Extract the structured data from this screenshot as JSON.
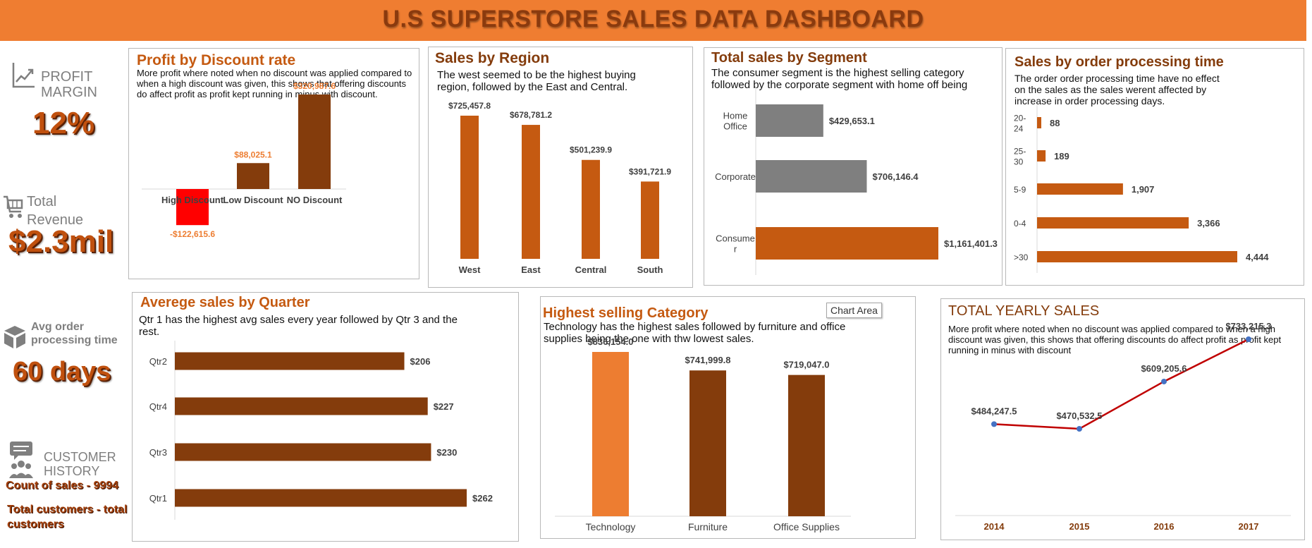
{
  "dashboard_title": "U.S SUPERSTORE SALES DATA DASHBOARD",
  "colors": {
    "banner": "#ef7d31",
    "dark_brown": "#843c0c",
    "orange": "#c55a11",
    "light_orange": "#ed7d31",
    "gray": "#7f7f7f",
    "red": "#ff0000",
    "line_red": "#c00000",
    "point_blue": "#4472c4"
  },
  "kpis": {
    "profit_margin": {
      "label": "PROFIT MARGIN",
      "value": "12%",
      "icon": "trend-chart-icon"
    },
    "total_revenue": {
      "label_line1": "Total",
      "label_line2": "Revenue",
      "value": "$2.3mil",
      "icon": "shopping-cart-icon"
    },
    "avg_processing": {
      "label_line1": "Avg order",
      "label_line2": "processing time",
      "value": "60 days",
      "icon": "box-icon"
    },
    "customer_history": {
      "label_line1": "CUSTOMER",
      "label_line2": "HISTORY",
      "count_text": "Count of sales  -  9994",
      "customers_line1": "Total customers - total",
      "customers_line2": "customers",
      "icon": "customers-icon"
    }
  },
  "panels": {
    "discount": {
      "title": "Profit by Discount rate",
      "description": "More profit where noted when no discount was applied compared to when a high discount was given, this shows that offering discounts do affect profit as profit kept running in minus with discount."
    },
    "region": {
      "title": "Sales by Region",
      "description": "The west seemed to be the highest buying region, followed by the East and Central."
    },
    "segment": {
      "title": "Total sales by Segment",
      "description": "The consumer segment is the highest selling category followed by the corporate segment with home off being"
    },
    "processing": {
      "title": "Sales by order processing time",
      "description": "The order order processing time have no effect on the sales as the sales werent affected by increase in order processing days."
    },
    "quarter": {
      "title": "Averege sales by Quarter",
      "description": "Qtr 1 has the highest avg sales every year followed by Qtr 3 and the rest."
    },
    "category": {
      "title": "Highest selling Category",
      "description": "Technology has the highest sales followed by furniture and office supplies being the one with thw lowest sales.",
      "tooltip": "Chart Area"
    },
    "yearly": {
      "title": "TOTAL YEARLY SALES",
      "description": "More profit where noted when no discount was applied compared to when a high discount was given, this shows that offering discounts do affect profit as profit kept running in minus with discount"
    }
  },
  "chart_data": [
    {
      "id": "discount",
      "type": "bar",
      "title": "Profit by Discount rate",
      "categories": [
        "High Discount",
        "Low Discount",
        "NO Discount"
      ],
      "values": [
        -122615.6,
        88025.1,
        320987.6
      ],
      "labels": [
        "-$122,615.6",
        "$88,025.1",
        "$320,987.6"
      ]
    },
    {
      "id": "region",
      "type": "bar",
      "title": "Sales by Region",
      "categories": [
        "West",
        "East",
        "Central",
        "South"
      ],
      "values": [
        725457.8,
        678781.2,
        501239.9,
        391721.9
      ],
      "labels": [
        "$725,457.8",
        "$678,781.2",
        "$501,239.9",
        "$391,721.9"
      ]
    },
    {
      "id": "segment",
      "type": "bar",
      "orientation": "horizontal",
      "title": "Total sales by Segment",
      "categories": [
        "Home Office",
        "Corporate",
        "Consumer"
      ],
      "category_lines": [
        [
          "Home",
          "Office"
        ],
        [
          "Corporate"
        ],
        [
          "Consume",
          "r"
        ]
      ],
      "values": [
        429653.1,
        706146.4,
        1161401.3
      ],
      "labels": [
        "$429,653.1",
        "$706,146.4",
        "$1,161,401.3"
      ]
    },
    {
      "id": "processing",
      "type": "bar",
      "orientation": "horizontal",
      "title": "Sales by order processing time",
      "categories": [
        "20-24",
        "25-30",
        "5-9",
        "0-4",
        ">30"
      ],
      "category_lines": [
        [
          "20-",
          "24"
        ],
        [
          "25-",
          "30"
        ],
        [
          "5-9"
        ],
        [
          "0-4"
        ],
        [
          ">30"
        ]
      ],
      "values": [
        88,
        189,
        1907,
        3366,
        4444
      ],
      "labels": [
        "88",
        "189",
        "1,907",
        "3,366",
        "4,444"
      ]
    },
    {
      "id": "quarter",
      "type": "bar",
      "orientation": "horizontal",
      "title": "Averege sales by Quarter",
      "categories": [
        "Qtr2",
        "Qtr4",
        "Qtr3",
        "Qtr1"
      ],
      "values": [
        206,
        227,
        230,
        262
      ],
      "labels": [
        "$206",
        "$227",
        "$230",
        "$262"
      ]
    },
    {
      "id": "category",
      "type": "bar",
      "title": "Highest selling Category",
      "categories": [
        "Technology",
        "Furniture",
        "Office Supplies"
      ],
      "values": [
        836154.0,
        741999.8,
        719047.0
      ],
      "labels": [
        "$836,154.0",
        "$741,999.8",
        "$719,047.0"
      ]
    },
    {
      "id": "yearly",
      "type": "line",
      "title": "TOTAL YEARLY SALES",
      "categories": [
        "2014",
        "2015",
        "2016",
        "2017"
      ],
      "values": [
        484247.5,
        470532.5,
        609205.6,
        733215.3
      ],
      "labels": [
        "$484,247.5",
        "$470,532.5",
        "$609,205.6",
        "$733,215.3"
      ]
    }
  ]
}
